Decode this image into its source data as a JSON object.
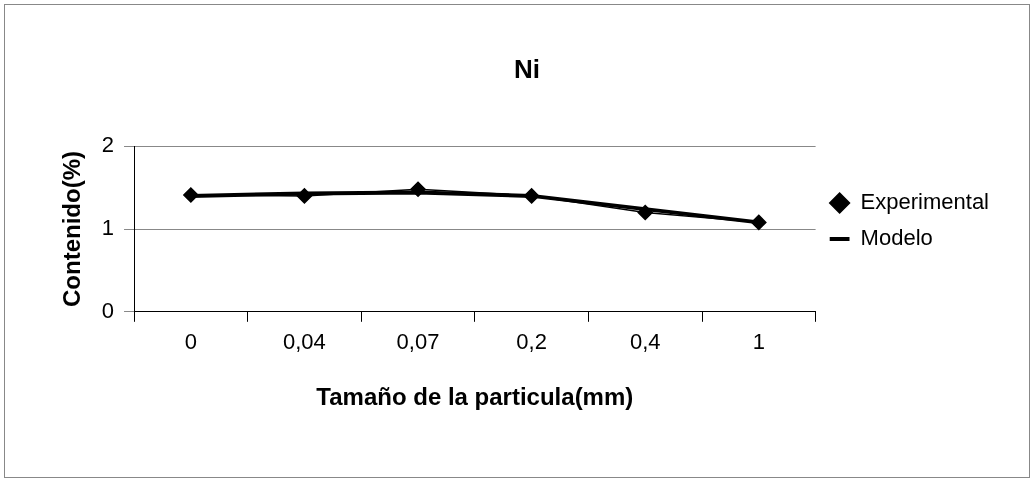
{
  "chart_data": {
    "type": "line",
    "title": "Ni",
    "xlabel": "Tamaño de la particula(mm)",
    "ylabel": "Contenido(%)",
    "categories": [
      "0",
      "0,04",
      "0,07",
      "0,2",
      "0,4",
      "1"
    ],
    "series": [
      {
        "name": "Experimental",
        "color": "#000000",
        "marker": "diamond",
        "values": [
          1.41,
          1.4,
          1.48,
          1.4,
          1.2,
          1.08
        ]
      },
      {
        "name": "Modelo",
        "color": "#000000",
        "marker": "none",
        "values": [
          1.4,
          1.43,
          1.44,
          1.4,
          1.24,
          1.08
        ]
      }
    ],
    "ylim": [
      0,
      2
    ],
    "yticks": [
      0,
      1,
      2
    ],
    "grid": "y",
    "legend": "right",
    "line_style": "solid"
  }
}
